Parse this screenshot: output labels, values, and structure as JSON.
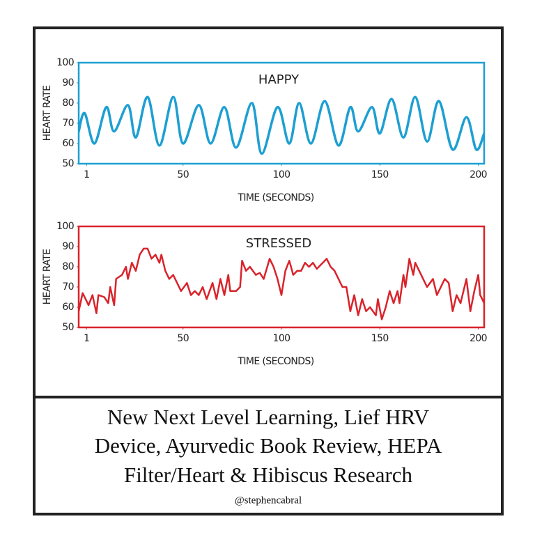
{
  "chart_data": [
    {
      "type": "line",
      "title": "HAPPY",
      "y_label": "HEART RATE",
      "x_label": "TIME (SECONDS)",
      "smooth": true,
      "x": [
        -3,
        0,
        5,
        11,
        15,
        22,
        26,
        32,
        38,
        45,
        50,
        58,
        64,
        71,
        77,
        85,
        90,
        98,
        104,
        109,
        115,
        122,
        129,
        135,
        139,
        146,
        150,
        156,
        162,
        168,
        174,
        180,
        187,
        194,
        199,
        203
      ],
      "series": [
        {
          "name": "HAPPY",
          "color": "#1d9fd2",
          "values": [
            66,
            75,
            60,
            78,
            66,
            79,
            63,
            83,
            59,
            83,
            60,
            79,
            60,
            78,
            58,
            80,
            55,
            78,
            60,
            80,
            60,
            81,
            59,
            78,
            66,
            78,
            65,
            82,
            63,
            83,
            61,
            81,
            57,
            73,
            57,
            65
          ]
        }
      ],
      "xlim": [
        -3,
        203
      ],
      "xticks": [
        1,
        50,
        100,
        150,
        200
      ],
      "ylim": [
        50,
        100
      ],
      "yticks": [
        50,
        60,
        70,
        80,
        90,
        100
      ]
    },
    {
      "type": "line",
      "title": "STRESSED",
      "y_label": "HEART RATE",
      "x_label": "TIME (SECONDS)",
      "smooth": false,
      "x": [
        -3,
        -1,
        2,
        4,
        6,
        7,
        10,
        12,
        13,
        15,
        16,
        19,
        21,
        22,
        24,
        26,
        28,
        30,
        32,
        34,
        36,
        38,
        39,
        41,
        43,
        45,
        47,
        49,
        52,
        54,
        56,
        58,
        60,
        62,
        65,
        67,
        69,
        71,
        73,
        74,
        77,
        79,
        80,
        82,
        84,
        87,
        89,
        91,
        94,
        96,
        98,
        100,
        102,
        104,
        106,
        108,
        110,
        112,
        114,
        116,
        118,
        121,
        123,
        125,
        127,
        129,
        131,
        133,
        135,
        137,
        139,
        141,
        143,
        145,
        148,
        149,
        151,
        153,
        155,
        157,
        159,
        160,
        162,
        163,
        165,
        167,
        168,
        170,
        172,
        174,
        177,
        179,
        181,
        183,
        185,
        187,
        189,
        191,
        193,
        194,
        196,
        198,
        200,
        201,
        203
      ],
      "series": [
        {
          "name": "STRESSED",
          "color": "#d9232b",
          "values": [
            58,
            67,
            61,
            66,
            57,
            66,
            65,
            62,
            70,
            61,
            74,
            76,
            80,
            74,
            82,
            78,
            86,
            89,
            89,
            84,
            86,
            82,
            86,
            78,
            74,
            76,
            72,
            68,
            72,
            66,
            68,
            66,
            70,
            64,
            72,
            64,
            74,
            66,
            76,
            68,
            68,
            70,
            83,
            78,
            80,
            76,
            77,
            74,
            84,
            80,
            74,
            66,
            78,
            83,
            76,
            78,
            78,
            82,
            80,
            82,
            79,
            82,
            84,
            80,
            78,
            74,
            70,
            70,
            58,
            66,
            56,
            64,
            58,
            60,
            56,
            64,
            54,
            60,
            68,
            62,
            68,
            62,
            76,
            70,
            84,
            76,
            82,
            78,
            74,
            70,
            74,
            66,
            70,
            74,
            72,
            58,
            66,
            62,
            70,
            74,
            58,
            68,
            76,
            66,
            62
          ]
        }
      ],
      "xlim": [
        -3,
        203
      ],
      "xticks": [
        1,
        50,
        100,
        150,
        200
      ],
      "ylim": [
        50,
        100
      ],
      "yticks": [
        50,
        60,
        70,
        80,
        90,
        100
      ]
    }
  ],
  "caption": [
    "New Next Level Learning, Lief HRV",
    "Device, Ayurvedic Book Review, HEPA",
    "Filter/Heart & Hibiscus Research"
  ],
  "handle": "@stephencabral"
}
